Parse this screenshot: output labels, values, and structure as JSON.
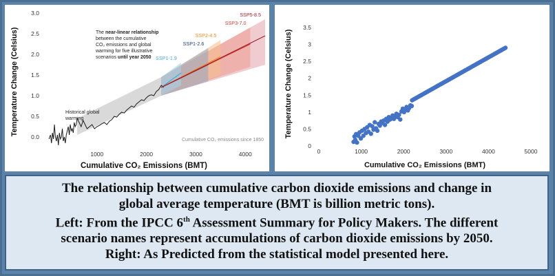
{
  "chart_data": [
    {
      "type": "line",
      "ylabel": "Temperature Change (Celsius)",
      "xlabel": "Cumulative CO₂ Emissions (BMT)",
      "xlim": [
        0,
        4400
      ],
      "ylim": [
        -0.3,
        3.0
      ],
      "x_ticks": [
        "1000",
        "2000",
        "3000",
        "4000"
      ],
      "y_ticks": [
        "0.0",
        "0.5",
        "1.0",
        "1.5",
        "2.0",
        "2.5",
        "3.0"
      ],
      "grid": false,
      "annotations": {
        "intro": "The",
        "bold": "near-linear relationship",
        "lines": [
          "between the cumulative",
          "CO₂ emissions and global",
          "warming for five illustrative",
          "scenarios"
        ],
        "until": "until year 2050",
        "historical_1": "Historical global",
        "historical_2": "warming",
        "footnote": "Cumulative CO₂ emissions since 1850"
      },
      "scenarios": [
        {
          "name": "SSP1-1.9",
          "color": "#4aa7d8",
          "x_end": 2700,
          "y_end": 1.55,
          "lo_end": 1.25,
          "hi_end": 1.8
        },
        {
          "name": "SSP1-2.6",
          "color": "#1f3f6e",
          "x_end": 3250,
          "y_end": 1.75,
          "lo_end": 1.35,
          "hi_end": 2.15
        },
        {
          "name": "SSP2-4.5",
          "color": "#f08a24",
          "x_end": 3500,
          "y_end": 1.95,
          "lo_end": 1.5,
          "hi_end": 2.35
        },
        {
          "name": "SSP3-7.0",
          "color": "#d13a2f",
          "x_end": 4100,
          "y_end": 2.25,
          "lo_end": 1.7,
          "hi_end": 2.65
        },
        {
          "name": "SSP5-8.5",
          "color": "#9e1f2f",
          "x_end": 4400,
          "y_end": 2.45,
          "lo_end": 1.75,
          "hi_end": 2.85
        }
      ],
      "historical": {
        "x": [
          30,
          60,
          80,
          100,
          120,
          140,
          160,
          180,
          200,
          220,
          240,
          260,
          280,
          300,
          320,
          340,
          360,
          380,
          400,
          420,
          440,
          460,
          480,
          500,
          520,
          540,
          560,
          580,
          600,
          640,
          680,
          720,
          760,
          800,
          850,
          900,
          950,
          1000,
          1050,
          1100,
          1150,
          1200,
          1250,
          1300,
          1350,
          1400,
          1450,
          1500,
          1550,
          1600,
          1650,
          1700,
          1750,
          1800,
          1850,
          1900,
          1950,
          2000,
          2050,
          2100,
          2150,
          2200,
          2250,
          2300,
          2350
        ],
        "y": [
          -0.05,
          0.05,
          -0.15,
          0.1,
          -0.05,
          0.3,
          0.0,
          -0.1,
          0.05,
          -0.2,
          0.1,
          -0.05,
          0.0,
          0.2,
          -0.1,
          0.0,
          -0.15,
          0.05,
          0.15,
          0.25,
          0.05,
          0.3,
          0.15,
          0.2,
          0.1,
          0.35,
          0.25,
          0.3,
          0.45,
          0.35,
          0.25,
          0.4,
          0.3,
          0.2,
          0.25,
          0.3,
          0.2,
          0.25,
          0.28,
          0.32,
          0.35,
          0.3,
          0.38,
          0.42,
          0.5,
          0.48,
          0.55,
          0.6,
          0.58,
          0.65,
          0.7,
          0.75,
          0.72,
          0.8,
          0.85,
          0.9,
          0.88,
          0.95,
          1.0,
          1.02,
          1.0,
          1.1,
          1.15,
          1.25,
          1.2
        ]
      },
      "historical_band": {
        "x": [
          600,
          2300
        ],
        "lo": [
          0.05,
          1.0
        ],
        "hi": [
          0.45,
          1.45
        ]
      }
    },
    {
      "type": "scatter",
      "ylabel": "Temperature Change (Celsius)",
      "xlabel": "Cumulative CO₂ Emissions (BMT)",
      "xlim": [
        0,
        5000
      ],
      "ylim": [
        0,
        3.5
      ],
      "x_ticks": [
        "0",
        "1000",
        "2000",
        "3000",
        "4000",
        "5000"
      ],
      "y_ticks": [
        "0",
        "0.5",
        "1",
        "1.5",
        "2",
        "2.5",
        "3",
        "3.5"
      ],
      "grid": false,
      "marker_color": "#4472c4",
      "x": [
        820,
        840,
        860,
        880,
        900,
        930,
        960,
        990,
        1020,
        1050,
        1080,
        1110,
        1140,
        1170,
        1200,
        1230,
        1260,
        1290,
        1320,
        1350,
        1380,
        1410,
        1440,
        1470,
        1500,
        1530,
        1560,
        1590,
        1620,
        1650,
        1680,
        1710,
        1740,
        1770,
        1800,
        1830,
        1860,
        1890,
        1920,
        1950,
        1980,
        2010,
        2040,
        2070,
        2100,
        2130,
        2160,
        2190
      ],
      "y": [
        0.12,
        0.28,
        0.18,
        0.35,
        0.1,
        0.3,
        0.4,
        0.22,
        0.45,
        0.3,
        0.5,
        0.38,
        0.55,
        0.42,
        0.62,
        0.36,
        0.58,
        0.48,
        0.7,
        0.52,
        0.45,
        0.65,
        0.6,
        0.72,
        0.68,
        0.75,
        0.62,
        0.8,
        0.72,
        0.85,
        0.78,
        0.82,
        0.9,
        0.8,
        0.88,
        0.95,
        0.85,
        0.92,
        0.78,
        1.02,
        1.1,
        1.0,
        1.08,
        1.15,
        1.05,
        1.12,
        1.2,
        1.18
      ],
      "trend": {
        "x": [
          2200,
          4400
        ],
        "y": [
          1.35,
          2.9
        ],
        "points": 75
      }
    }
  ],
  "caption": {
    "line1": "The relationship between cumulative carbon dioxide emissions and change in",
    "line2": "global average temperature (BMT is billion metric tons).",
    "line3_pre": "Left: From the IPCC 6",
    "line3_sup": "th",
    "line3_post": " Assessment Summary for Policy Makers.  The different",
    "line4": "scenario names represent accumulations of carbon dioxide emissions by 2050.",
    "line5": "Right: As Predicted from the statistical model presented here."
  }
}
